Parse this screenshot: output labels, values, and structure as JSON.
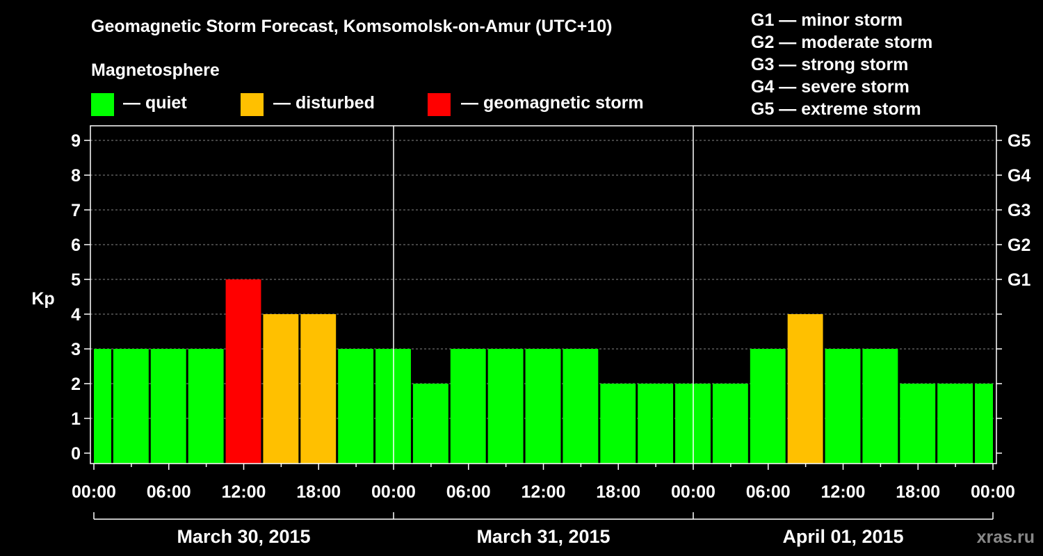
{
  "title": "Geomagnetic Storm Forecast, Komsomolsk-on-Amur (UTC+10)",
  "magnetosphere_label": "Magnetosphere",
  "legend": [
    {
      "label": "— quiet",
      "color": "#00ff00"
    },
    {
      "label": "— disturbed",
      "color": "#ffc000"
    },
    {
      "label": "— geomagnetic storm",
      "color": "#ff0000"
    }
  ],
  "g_scale": [
    "G1 — minor storm",
    "G2 — moderate storm",
    "G3 — strong storm",
    "G4 — severe storm",
    "G5 — extreme storm"
  ],
  "watermark": "xras.ru",
  "chart_data": {
    "type": "bar",
    "ylabel": "Kp",
    "ylim": [
      0,
      9
    ],
    "yticks": [
      "0",
      "1",
      "2",
      "3",
      "4",
      "5",
      "6",
      "7",
      "8",
      "9"
    ],
    "right_ticks": [
      {
        "kp": 5,
        "label": "G1"
      },
      {
        "kp": 6,
        "label": "G2"
      },
      {
        "kp": 7,
        "label": "G3"
      },
      {
        "kp": 8,
        "label": "G4"
      },
      {
        "kp": 9,
        "label": "G5"
      }
    ],
    "xtick_labels": [
      "00:00",
      "06:00",
      "12:00",
      "18:00",
      "00:00",
      "06:00",
      "12:00",
      "18:00",
      "00:00",
      "06:00",
      "12:00",
      "18:00",
      "00:00"
    ],
    "days": [
      "March 30, 2015",
      "March 31, 2015",
      "April 01, 2015"
    ],
    "bar_interval_hours": 3,
    "values": [
      3,
      3,
      3,
      3,
      5,
      4,
      4,
      3,
      3,
      2,
      3,
      3,
      3,
      3,
      2,
      2,
      2,
      2,
      3,
      4,
      3,
      3,
      2,
      2,
      2
    ],
    "colors": {
      "quiet": "#00ff00",
      "disturbed": "#ffc000",
      "storm": "#ff0000"
    }
  }
}
